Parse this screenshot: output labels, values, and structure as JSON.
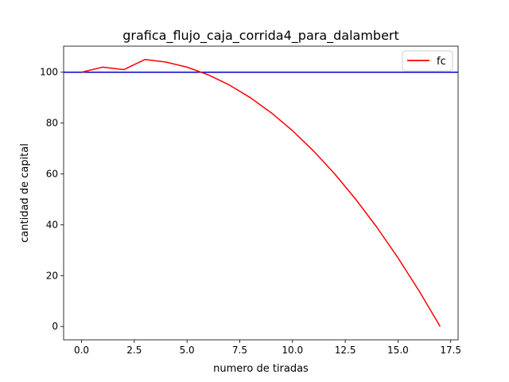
{
  "chart_data": {
    "type": "line",
    "title": "grafica_flujo_caja_corrida4_para_dalambert",
    "xlabel": "numero de tiradas",
    "ylabel": "cantidad de capital",
    "xlim": [
      -0.85,
      17.85
    ],
    "ylim": [
      -5.25,
      110.25
    ],
    "xticks": [
      0.0,
      2.5,
      5.0,
      7.5,
      10.0,
      12.5,
      15.0,
      17.5
    ],
    "xtick_labels": [
      "0.0",
      "2.5",
      "5.0",
      "7.5",
      "10.0",
      "12.5",
      "15.0",
      "17.5"
    ],
    "yticks": [
      0,
      20,
      40,
      60,
      80,
      100
    ],
    "ytick_labels": [
      "0",
      "20",
      "40",
      "60",
      "80",
      "100"
    ],
    "grid": false,
    "legend_position": "top-right",
    "series": [
      {
        "name": "fc",
        "color": "#ff0000",
        "x": [
          0,
          1,
          2,
          3,
          4,
          5,
          6,
          7,
          8,
          9,
          10,
          11,
          12,
          13,
          14,
          15,
          16,
          17
        ],
        "values": [
          100,
          102,
          101,
          105,
          104,
          102,
          99,
          95,
          90,
          84,
          77,
          69,
          60,
          50,
          39,
          27,
          14,
          0
        ]
      }
    ],
    "hlines": [
      {
        "y": 100,
        "color": "#0000cc"
      }
    ]
  }
}
